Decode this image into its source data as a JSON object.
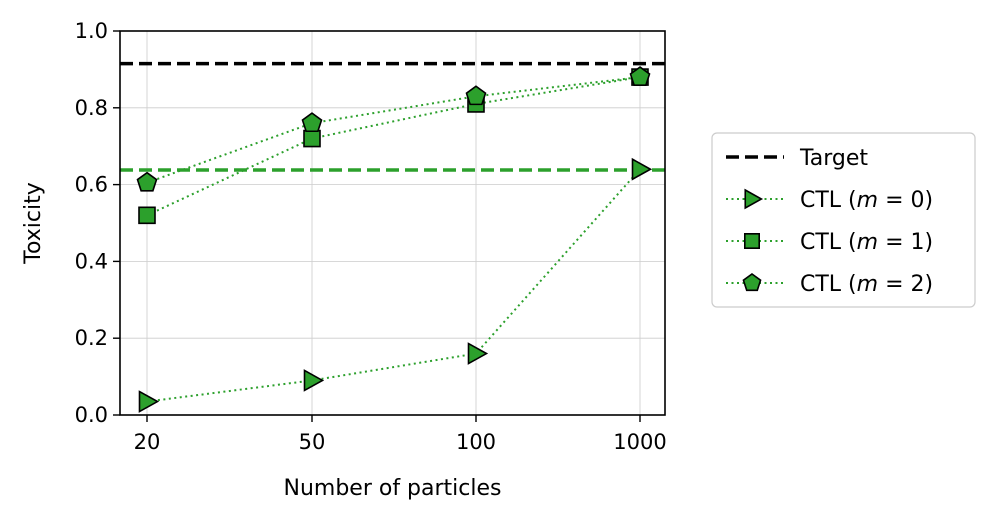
{
  "chart_data": {
    "type": "line",
    "title": "",
    "xlabel": "Number of particles",
    "ylabel": "Toxicity",
    "categories": [
      "20",
      "50",
      "100",
      "1000"
    ],
    "ylim": [
      0.0,
      1.0
    ],
    "yticks": [
      0.0,
      0.2,
      0.4,
      0.6,
      0.8,
      1.0
    ],
    "yticklabels": [
      "0.0",
      "0.2",
      "0.4",
      "0.6",
      "0.8",
      "1.0"
    ],
    "grid": true,
    "legend_position": "right-outside",
    "reference_lines": [
      {
        "name": "Target",
        "value": 0.915,
        "color": "#000000",
        "style": "dashed"
      },
      {
        "name": "",
        "value": 0.638,
        "color": "#2ca02c",
        "style": "dashed"
      }
    ],
    "series": [
      {
        "name": "CTL (m = 0)",
        "marker": "triangle-right",
        "color": "#2ca02c",
        "values": [
          0.035,
          0.09,
          0.16,
          0.64
        ]
      },
      {
        "name": "CTL (m = 1)",
        "marker": "square",
        "color": "#2ca02c",
        "values": [
          0.52,
          0.72,
          0.81,
          0.88
        ]
      },
      {
        "name": "CTL (m = 2)",
        "marker": "pentagon",
        "color": "#2ca02c",
        "values": [
          0.605,
          0.76,
          0.83,
          0.88
        ]
      }
    ],
    "legend": {
      "entries": [
        {
          "label": "Target",
          "name_prefix": "Target",
          "math_var": "",
          "math_rest": ""
        },
        {
          "label": "CTL (m = 0)",
          "name_prefix": "CTL (",
          "math_var": "m",
          "math_rest": " = 0)"
        },
        {
          "label": "CTL (m = 1)",
          "name_prefix": "CTL (",
          "math_var": "m",
          "math_rest": " = 1)"
        },
        {
          "label": "CTL (m = 2)",
          "name_prefix": "CTL (",
          "math_var": "m",
          "math_rest": " = 2)"
        }
      ]
    }
  }
}
